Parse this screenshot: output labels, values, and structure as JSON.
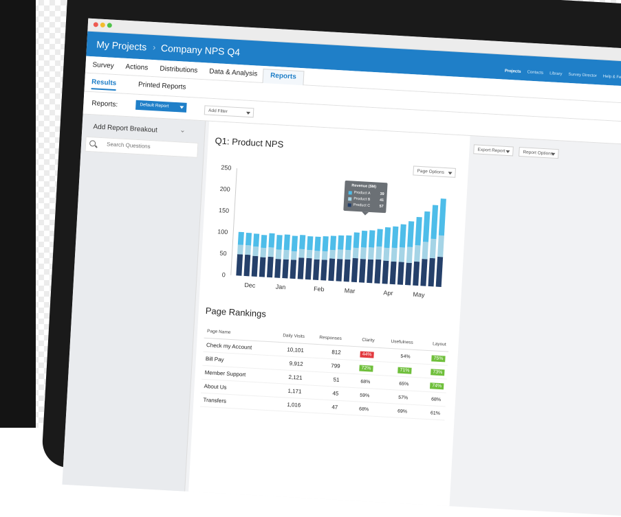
{
  "colors": {
    "brand_blue": "#1f7fc8",
    "product_a": "#4ebde9",
    "product_b": "#a5d4e6",
    "product_c": "#25406a",
    "good": "#6fbf3b",
    "bad": "#e2383d"
  },
  "breadcrumb": {
    "project_root": "My Projects",
    "project": "Company NPS Q4"
  },
  "top_nav": [
    "Projects",
    "Contacts",
    "Library",
    "Survey Director",
    "Help & Feedback"
  ],
  "main_tabs": [
    "Survey",
    "Actions",
    "Distributions",
    "Data & Analysis",
    "Reports"
  ],
  "sub_tabs": [
    "Results",
    "Printed Reports"
  ],
  "reports_bar": {
    "label": "Reports:",
    "report_select": "Default Report",
    "filter_select": "Add Filter"
  },
  "sidebar": {
    "title": "Add Report Breakout",
    "search_placeholder": "Search Questions"
  },
  "toolbar": {
    "export": "Export Report",
    "options": "Report Options",
    "page_options": "Page Options"
  },
  "panel": {
    "title": "Q1: Product NPS",
    "rankings_title": "Page Rankings"
  },
  "tooltip": {
    "title": "Revenue ($M)",
    "rows": [
      {
        "label": "Product A",
        "value": "39"
      },
      {
        "label": "Product B",
        "value": "41"
      },
      {
        "label": "Product C",
        "value": "57"
      }
    ]
  },
  "chart_data": {
    "type": "bar",
    "stacked": true,
    "yticks": [
      "250",
      "200",
      "150",
      "100",
      "50",
      "0"
    ],
    "ylim": [
      0,
      250
    ],
    "xticks": [
      "Dec",
      "Jan",
      "Feb",
      "Mar",
      "Apr",
      "May"
    ],
    "series": [
      {
        "name": "Product C",
        "values": [
          50,
          50,
          48,
          46,
          48,
          44,
          44,
          44,
          50,
          50,
          48,
          48,
          52,
          52,
          52,
          56,
          55,
          55,
          56,
          54,
          53,
          53,
          52,
          56,
          63,
          66,
          70
        ]
      },
      {
        "name": "Product B",
        "values": [
          22,
          22,
          22,
          22,
          22,
          22,
          22,
          20,
          20,
          19,
          20,
          20,
          20,
          22,
          22,
          24,
          27,
          28,
          30,
          30,
          32,
          34,
          37,
          38,
          40,
          45,
          50
        ]
      },
      {
        "name": "Product A",
        "values": [
          30,
          29,
          30,
          30,
          33,
          34,
          36,
          36,
          33,
          32,
          33,
          35,
          33,
          33,
          34,
          36,
          39,
          40,
          41,
          48,
          50,
          54,
          60,
          66,
          71,
          79,
          86
        ]
      }
    ]
  },
  "rankings": {
    "headers": [
      "Page Name",
      "Daily Visits",
      "Responses",
      "Clarity",
      "Usefulness",
      "Layout"
    ],
    "rows": [
      [
        "Check my Account",
        "10,101",
        "812",
        "44%",
        "54%",
        "75%"
      ],
      [
        "Bill Pay",
        "9,912",
        "799",
        "72%",
        "71%",
        "73%"
      ],
      [
        "Member Support",
        "2,121",
        "51",
        "68%",
        "65%",
        "74%"
      ],
      [
        "About Us",
        "1,171",
        "45",
        "59%",
        "57%",
        "68%"
      ],
      [
        "Transfers",
        "1,016",
        "47",
        "68%",
        "69%",
        "61%"
      ]
    ]
  }
}
